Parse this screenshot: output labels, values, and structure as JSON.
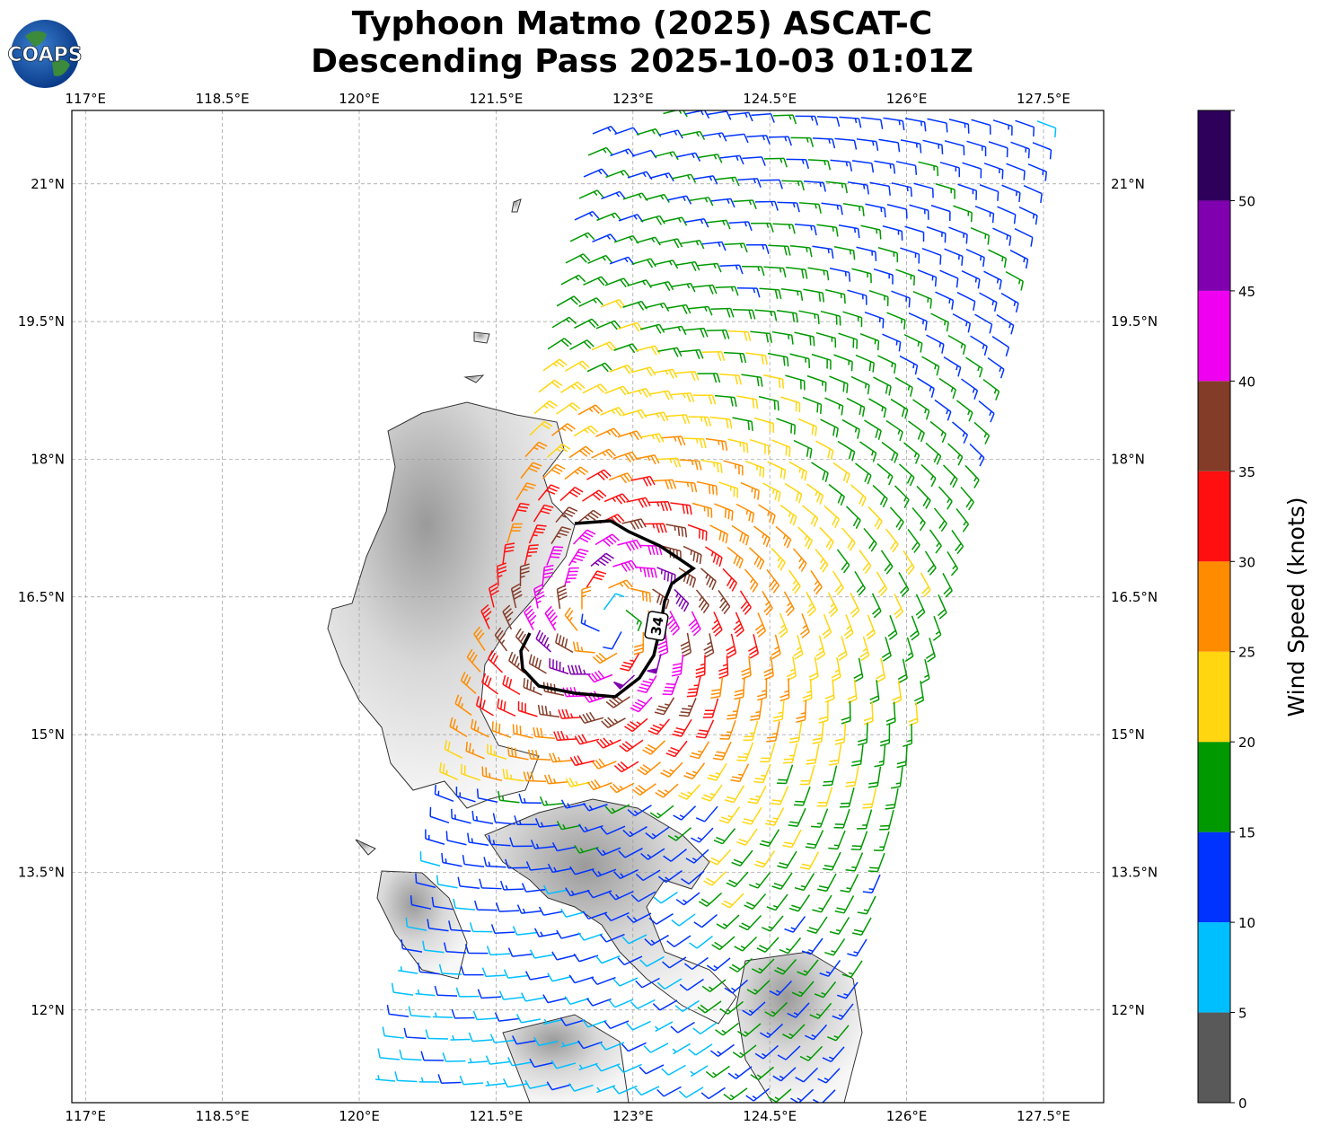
{
  "title": {
    "line1": "Typhoon Matmo (2025) ASCAT-C",
    "line2": "Descending Pass 2025-10-03 01:01Z"
  },
  "logo": {
    "text": "COAPS"
  },
  "map": {
    "lon_ticks": [
      "117°E",
      "118.5°E",
      "120°E",
      "121.5°E",
      "123°E",
      "124.5°E",
      "126°E",
      "127.5°E"
    ],
    "lat_ticks": [
      "21°N",
      "19.5°N",
      "18°N",
      "16.5°N",
      "15°N",
      "13.5°N",
      "12°N"
    ],
    "lon_values": [
      117,
      118.5,
      120,
      121.5,
      123,
      124.5,
      126,
      127.5
    ],
    "lat_values": [
      21,
      19.5,
      18,
      16.5,
      15,
      13.5,
      12
    ],
    "extent": {
      "lon": [
        116.85,
        128.16
      ],
      "lat": [
        10.99,
        21.8
      ]
    },
    "gridlines": true,
    "contour_label": "34"
  },
  "colorbar": {
    "label": "Wind Speed (knots)",
    "ticks": [
      "0",
      "5",
      "10",
      "15",
      "20",
      "25",
      "30",
      "35",
      "40",
      "45",
      "50"
    ],
    "bounds": [
      0,
      5,
      10,
      15,
      20,
      25,
      30,
      35,
      40,
      45,
      50,
      55
    ],
    "colors": [
      "#595959",
      "#00bfff",
      "#0033ff",
      "#009900",
      "#ffd60f",
      "#ff8c00",
      "#ff0f0f",
      "#833c28",
      "#f000f0",
      "#8000b0",
      "#2e005c"
    ]
  }
}
